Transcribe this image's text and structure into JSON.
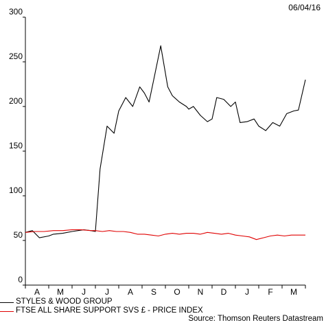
{
  "chart_data": {
    "type": "line",
    "date_label": "06/04/16",
    "source": "Source: Thomson Reuters Datastream",
    "yticks": [
      0,
      50,
      100,
      150,
      200,
      250,
      300
    ],
    "ylim": [
      0,
      300
    ],
    "categories": [
      "A",
      "M",
      "J",
      "J",
      "A",
      "S",
      "O",
      "N",
      "D",
      "J",
      "F",
      "M"
    ],
    "series": [
      {
        "name": "STYLES & WOOD GROUP",
        "color": "#000000",
        "x": [
          0.0,
          0.3,
          0.6,
          1.0,
          1.2,
          1.6,
          2.0,
          2.5,
          2.8,
          3.0,
          3.2,
          3.5,
          3.8,
          4.0,
          4.3,
          4.6,
          4.9,
          5.1,
          5.3,
          5.5,
          5.8,
          6.1,
          6.3,
          6.6,
          6.9,
          7.0,
          7.2,
          7.5,
          7.8,
          8.0,
          8.2,
          8.5,
          8.8,
          9.0,
          9.2,
          9.5,
          9.8,
          10.0,
          10.3,
          10.6,
          10.9,
          11.2,
          11.5,
          11.7,
          12.0
        ],
        "values": [
          59,
          61,
          53,
          55,
          57,
          58,
          60,
          62,
          61,
          60,
          130,
          178,
          170,
          195,
          210,
          200,
          222,
          215,
          205,
          230,
          268,
          222,
          212,
          205,
          200,
          197,
          200,
          190,
          183,
          186,
          210,
          208,
          200,
          205,
          182,
          183,
          186,
          178,
          173,
          182,
          178,
          192,
          195,
          196,
          230
        ]
      },
      {
        "name": "FTSE ALL SHARE SUPPORT SVS £ - PRICE INDEX",
        "color": "#e00000",
        "x": [
          0.0,
          0.4,
          0.8,
          1.2,
          1.6,
          2.0,
          2.4,
          2.8,
          3.0,
          3.3,
          3.6,
          3.9,
          4.2,
          4.5,
          4.8,
          5.1,
          5.4,
          5.7,
          6.0,
          6.3,
          6.6,
          6.9,
          7.2,
          7.5,
          7.8,
          8.1,
          8.4,
          8.7,
          9.0,
          9.3,
          9.6,
          9.9,
          10.2,
          10.5,
          10.8,
          11.1,
          11.4,
          11.7,
          12.0
        ],
        "values": [
          59,
          60,
          60,
          61,
          61,
          62,
          62,
          61,
          61,
          60,
          61,
          60,
          60,
          59,
          57,
          57,
          56,
          55,
          57,
          58,
          57,
          58,
          58,
          57,
          59,
          58,
          57,
          58,
          56,
          55,
          54,
          51,
          53,
          55,
          56,
          55,
          56,
          56,
          56
        ]
      }
    ]
  }
}
